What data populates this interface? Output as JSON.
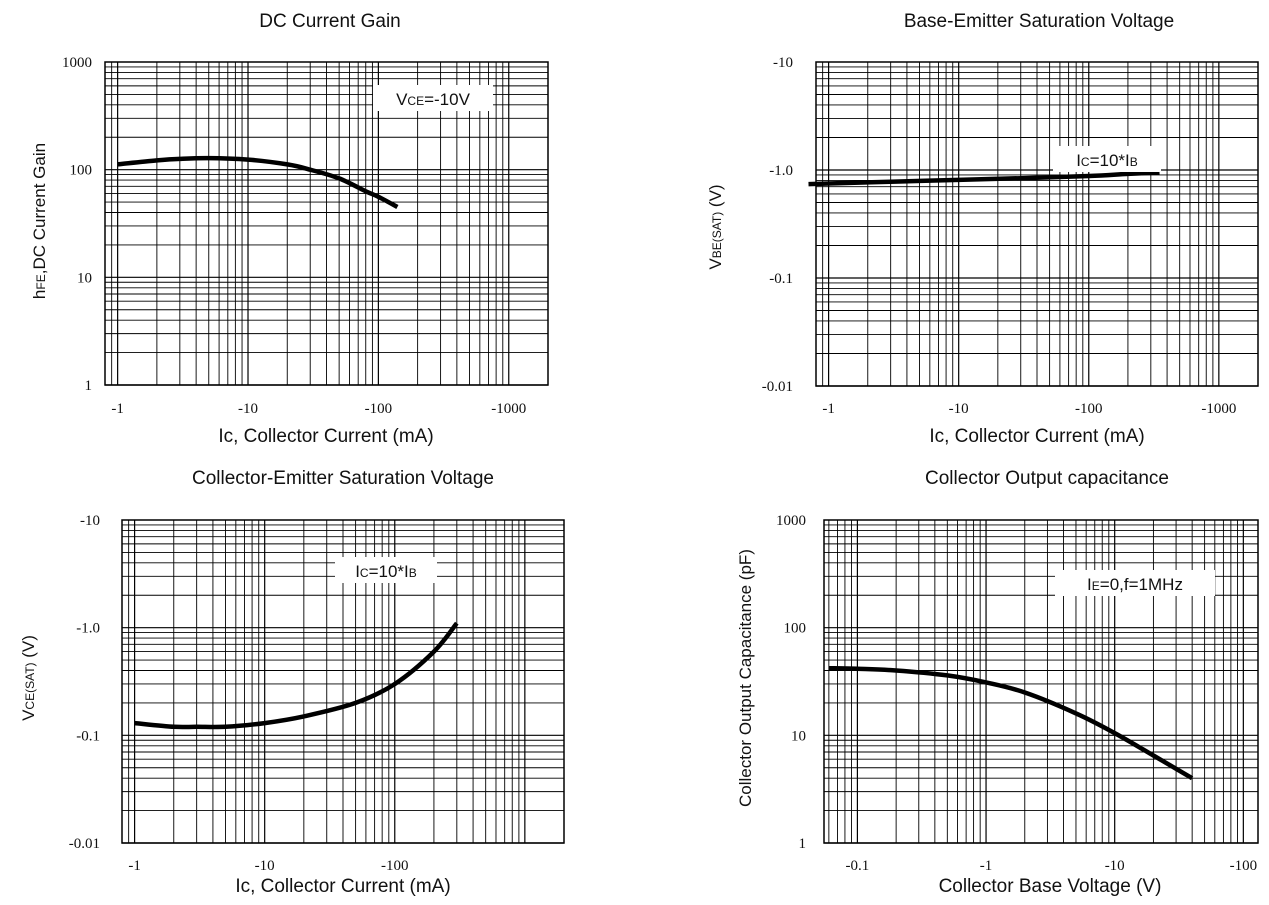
{
  "chart_data": [
    {
      "id": "dc-current-gain",
      "type": "line",
      "title": "DC Current Gain",
      "xlabel": "Ic, Collector Current (mA)",
      "ylabel": "hFE,DC Current Gain",
      "ylabel_parts": [
        "h",
        "FE",
        ",DC Current Gain"
      ],
      "x_scale": "log",
      "y_scale": "log",
      "x_ticks": [
        "-1",
        "-10",
        "-100",
        "-1000"
      ],
      "y_ticks": [
        "1",
        "10",
        "100",
        "1000"
      ],
      "annotation_parts": [
        "V",
        "CE",
        "=-10V"
      ],
      "annotation_text": "VCE=-10V",
      "series": [
        {
          "x": [
            -1,
            -2,
            -3,
            -5,
            -10,
            -20,
            -30,
            -50,
            -80,
            -100,
            -140
          ],
          "y": [
            112,
            122,
            126,
            128,
            124,
            112,
            100,
            83,
            63,
            56,
            45
          ]
        }
      ]
    },
    {
      "id": "vbe-sat",
      "type": "line",
      "title": "Base-Emitter Saturation Voltage",
      "xlabel": "Ic, Collector Current (mA)",
      "ylabel": "VBE(SAT) (V)",
      "ylabel_parts": [
        "V",
        "BE(SAT)",
        " (V)"
      ],
      "x_scale": "log",
      "y_scale": "log",
      "x_ticks": [
        "-1",
        "-10",
        "-100",
        "-1000"
      ],
      "y_ticks": [
        "-0.01",
        "-0.1",
        "-1.0",
        "-10"
      ],
      "annotation_parts": [
        "I",
        "C",
        "=10*I",
        "B"
      ],
      "annotation_text": "IC=10*IB",
      "series": [
        {
          "x": [
            -0.7,
            -1,
            -3,
            -10,
            -30,
            -100,
            -200,
            -350
          ],
          "y": [
            -0.74,
            -0.75,
            -0.78,
            -0.81,
            -0.84,
            -0.88,
            -0.92,
            -0.95
          ]
        }
      ]
    },
    {
      "id": "vce-sat",
      "type": "line",
      "title": "Collector-Emitter Saturation Voltage",
      "xlabel": "Ic, Collector Current (mA)",
      "ylabel": "VCE(SAT) (V)",
      "ylabel_parts": [
        "V",
        "CE(SAT)",
        " (V)"
      ],
      "x_scale": "log",
      "y_scale": "log",
      "x_ticks": [
        "-1",
        "-10",
        "-100"
      ],
      "y_ticks": [
        "-0.01",
        "-0.1",
        "-1.0",
        "-10"
      ],
      "annotation_parts": [
        "I",
        "C",
        "=10*I",
        "B"
      ],
      "annotation_text": "IC=10*IB",
      "series": [
        {
          "x": [
            -1,
            -2,
            -3,
            -5,
            -10,
            -20,
            -50,
            -100,
            -200,
            -300
          ],
          "y": [
            -0.13,
            -0.12,
            -0.12,
            -0.12,
            -0.13,
            -0.15,
            -0.2,
            -0.3,
            -0.6,
            -1.1
          ]
        }
      ]
    },
    {
      "id": "cob",
      "type": "line",
      "title": "Collector Output capacitance",
      "xlabel": "Collector Base Voltage (V)",
      "ylabel": "Collector Output Capacitance (pF)",
      "ylabel_parts": [
        "Collector Output Capacitance (pF)",
        "",
        ""
      ],
      "x_scale": "log",
      "y_scale": "log",
      "x_ticks": [
        "-0.1",
        "-1",
        "-10",
        "-100"
      ],
      "y_ticks": [
        "1",
        "10",
        "100",
        "1000"
      ],
      "annotation_parts": [
        "I",
        "E",
        "=0,f=1MHz"
      ],
      "annotation_text": "IE=0,f=1MHz",
      "series": [
        {
          "x": [
            -0.06,
            -0.1,
            -0.2,
            -0.5,
            -1,
            -2,
            -5,
            -10,
            -20,
            -40
          ],
          "y": [
            42,
            41.5,
            40,
            36,
            31,
            25,
            16,
            10.5,
            6.5,
            4
          ]
        }
      ]
    }
  ]
}
